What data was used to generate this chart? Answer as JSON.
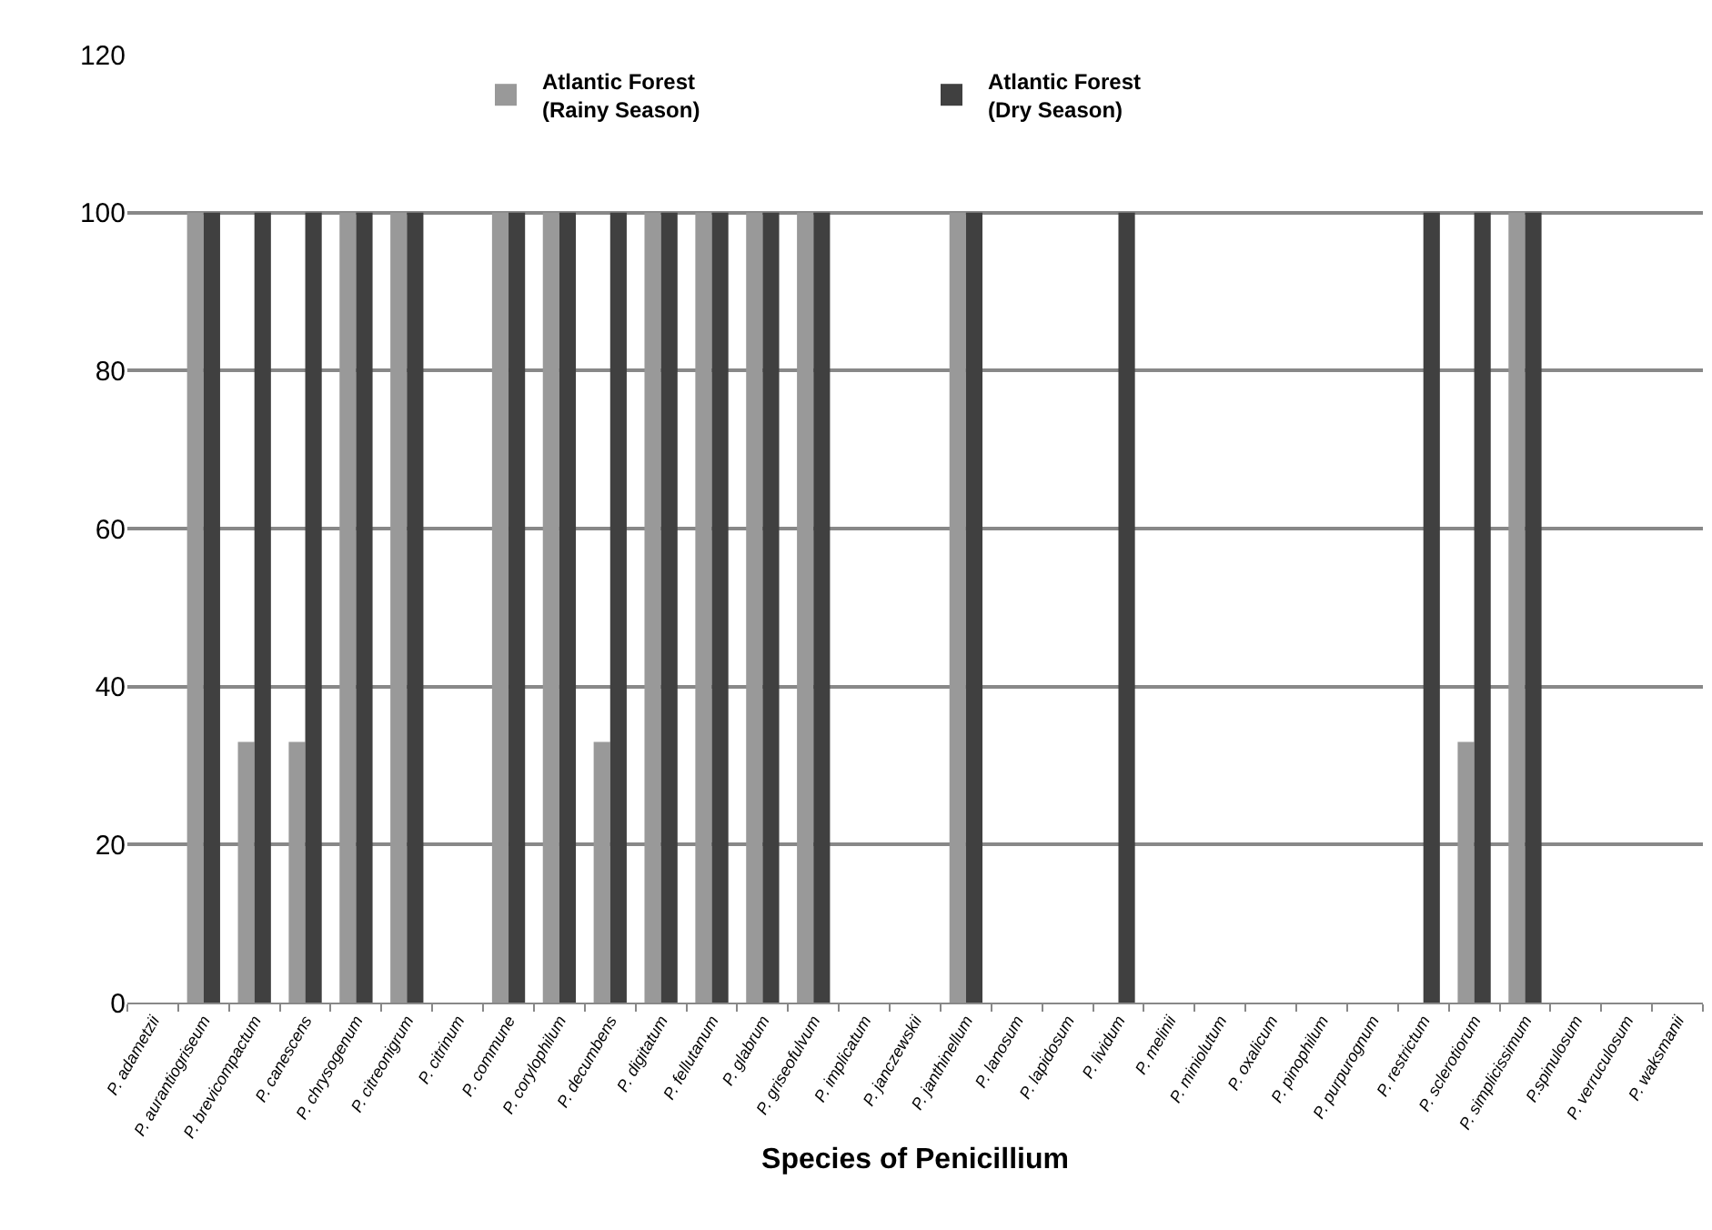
{
  "chart_data": {
    "type": "bar",
    "xlabel": "Species of Penicillium",
    "categories": [
      "P. adametzii",
      "P. aurantiogriseum",
      "P. brevicompactum",
      "P. canescens",
      "P. chrysogenum",
      "P. citreonigrum",
      "P. citrinum",
      "P. commune",
      "P. corylophilum",
      "P. decumbens",
      "P. digitatum",
      "P. fellutanum",
      "P. glabrum",
      "P. griseofulvum",
      "P. implicatum",
      "P. janczewskii",
      "P. janthinellum",
      "P. lanosum",
      "P. lapidosum",
      "P. lividum",
      "P. melinii",
      "P. miniolutum",
      "P. oxalicum",
      "P. pinophilum",
      "P. purpurognum",
      "P. restrictum",
      "P. sclerotiorum",
      "P. simplicissimum",
      "P.spinulosum",
      "P. verruculosum",
      "P. waksmanii"
    ],
    "series": [
      {
        "name": "Atlantic Forest\n(Rainy Season)",
        "color": "#999999",
        "values": [
          0,
          100,
          33,
          33,
          100,
          100,
          0,
          100,
          100,
          33,
          100,
          100,
          100,
          100,
          0,
          0,
          100,
          0,
          0,
          0,
          0,
          0,
          0,
          0,
          0,
          0,
          33,
          100,
          0,
          0,
          0
        ]
      },
      {
        "name": "Atlantic Forest\n(Dry Season)",
        "color": "#404040",
        "values": [
          0,
          100,
          100,
          100,
          100,
          100,
          0,
          100,
          100,
          100,
          100,
          100,
          100,
          100,
          0,
          0,
          100,
          0,
          0,
          100,
          0,
          0,
          0,
          0,
          0,
          100,
          100,
          100,
          0,
          0,
          0
        ]
      }
    ],
    "ylim": [
      0,
      120
    ],
    "yticks": [
      0,
      20,
      40,
      60,
      80,
      100,
      120
    ],
    "grid": "y",
    "legend": "top"
  }
}
